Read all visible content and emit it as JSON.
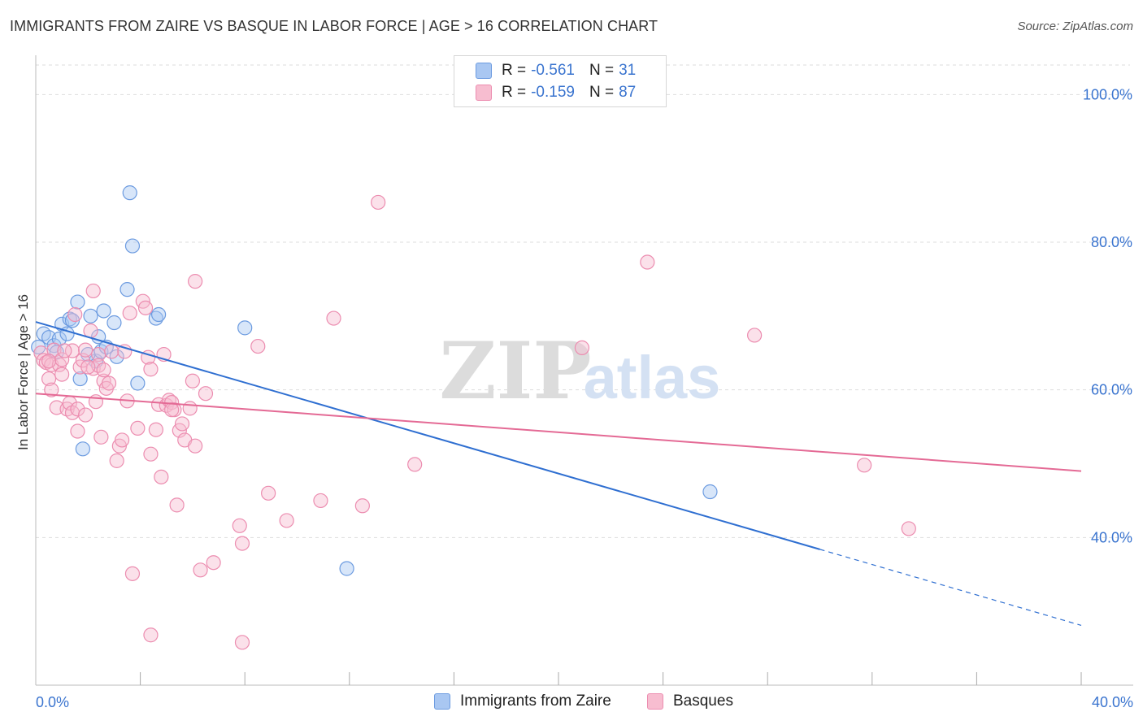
{
  "title": "IMMIGRANTS FROM ZAIRE VS BASQUE IN LABOR FORCE | AGE > 16 CORRELATION CHART",
  "source": "Source: ZipAtlas.com",
  "watermark": {
    "zip": "ZIP",
    "atlas": "atlas"
  },
  "colors": {
    "blue_fill": "#a9c7f2",
    "blue_stroke": "#6c9be0",
    "blue_line": "#2f6fd1",
    "pink_fill": "#f7bdd0",
    "pink_stroke": "#ec8db0",
    "pink_line": "#e46a95",
    "axis_label": "#3a74cf",
    "grid": "#dddddd"
  },
  "legend": {
    "series": [
      {
        "r_label": "R =",
        "r_value": "-0.561",
        "n_label": "N =",
        "n_value": "31"
      },
      {
        "r_label": "R =",
        "r_value": "-0.159",
        "n_label": "N =",
        "n_value": "87"
      }
    ]
  },
  "bottom_legend": [
    "Immigrants from Zaire",
    "Basques"
  ],
  "chart_data": {
    "type": "scatter",
    "xlabel": "",
    "ylabel": "In Labor Force | Age > 16",
    "xlim": [
      0,
      40
    ],
    "ylim": [
      20,
      104
    ],
    "x_tick_labels": [
      {
        "value": 0,
        "label": "0.0%"
      },
      {
        "value": 40,
        "label": "40.0%"
      }
    ],
    "x_minor_ticks": [
      4,
      8,
      12,
      16,
      20,
      24,
      28,
      32,
      36,
      40
    ],
    "y_ticks": [
      {
        "value": 100,
        "label": "100.0%"
      },
      {
        "value": 80,
        "label": "80.0%"
      },
      {
        "value": 60,
        "label": "60.0%"
      },
      {
        "value": 40,
        "label": "40.0%"
      }
    ],
    "grid": true,
    "legend_position": "top-center",
    "series": [
      {
        "name": "Immigrants from Zaire",
        "color": "blue",
        "trend": {
          "x1": 0,
          "y1": 69.2,
          "x2": 30,
          "y2": 38.4,
          "dashed_to_x": 40,
          "dashed_to_y": 28.1
        },
        "points": [
          [
            0.1,
            65.8
          ],
          [
            0.3,
            67.6
          ],
          [
            0.5,
            67.1
          ],
          [
            0.7,
            66.0
          ],
          [
            0.8,
            65.1
          ],
          [
            0.9,
            66.9
          ],
          [
            1.0,
            68.9
          ],
          [
            1.2,
            67.6
          ],
          [
            1.3,
            69.6
          ],
          [
            1.4,
            69.4
          ],
          [
            1.6,
            71.9
          ],
          [
            1.7,
            61.5
          ],
          [
            1.8,
            52.0
          ],
          [
            2.1,
            70.0
          ],
          [
            2.3,
            63.9
          ],
          [
            2.4,
            67.2
          ],
          [
            2.5,
            65.2
          ],
          [
            2.6,
            70.7
          ],
          [
            2.7,
            65.8
          ],
          [
            3.0,
            69.1
          ],
          [
            3.1,
            64.5
          ],
          [
            3.5,
            73.6
          ],
          [
            3.6,
            86.7
          ],
          [
            3.7,
            79.5
          ],
          [
            3.9,
            60.9
          ],
          [
            4.6,
            69.7
          ],
          [
            4.7,
            70.2
          ],
          [
            8.0,
            68.4
          ],
          [
            11.9,
            35.8
          ],
          [
            25.8,
            46.2
          ],
          [
            2.0,
            64.8
          ]
        ]
      },
      {
        "name": "Basques",
        "color": "pink",
        "trend": {
          "x1": 0,
          "y1": 59.5,
          "x2": 40,
          "y2": 49.0
        },
        "points": [
          [
            0.2,
            65.0
          ],
          [
            0.3,
            64.0
          ],
          [
            0.4,
            63.7
          ],
          [
            0.5,
            61.5
          ],
          [
            0.6,
            63.4
          ],
          [
            0.6,
            60.0
          ],
          [
            0.7,
            65.4
          ],
          [
            0.8,
            57.6
          ],
          [
            0.9,
            63.4
          ],
          [
            1.0,
            62.1
          ],
          [
            1.0,
            64.1
          ],
          [
            1.2,
            57.4
          ],
          [
            1.3,
            58.2
          ],
          [
            1.4,
            65.3
          ],
          [
            1.4,
            56.9
          ],
          [
            1.5,
            70.2
          ],
          [
            1.6,
            57.4
          ],
          [
            1.6,
            54.4
          ],
          [
            1.7,
            63.1
          ],
          [
            1.8,
            64.0
          ],
          [
            1.9,
            65.4
          ],
          [
            1.9,
            56.6
          ],
          [
            2.1,
            68.0
          ],
          [
            2.2,
            73.4
          ],
          [
            2.2,
            62.9
          ],
          [
            2.3,
            58.4
          ],
          [
            2.4,
            64.8
          ],
          [
            2.4,
            63.3
          ],
          [
            2.5,
            53.6
          ],
          [
            2.6,
            61.2
          ],
          [
            2.6,
            62.7
          ],
          [
            2.7,
            60.2
          ],
          [
            2.8,
            60.9
          ],
          [
            2.9,
            65.2
          ],
          [
            3.1,
            50.4
          ],
          [
            3.2,
            52.4
          ],
          [
            3.3,
            53.2
          ],
          [
            3.4,
            65.2
          ],
          [
            3.5,
            58.5
          ],
          [
            3.6,
            70.4
          ],
          [
            3.7,
            35.1
          ],
          [
            3.9,
            54.8
          ],
          [
            4.1,
            72.0
          ],
          [
            4.2,
            71.1
          ],
          [
            4.3,
            64.4
          ],
          [
            4.4,
            26.8
          ],
          [
            4.4,
            51.3
          ],
          [
            4.6,
            54.6
          ],
          [
            4.7,
            58.0
          ],
          [
            4.8,
            48.2
          ],
          [
            4.9,
            64.8
          ],
          [
            5.0,
            57.9
          ],
          [
            5.1,
            58.6
          ],
          [
            5.2,
            58.3
          ],
          [
            5.3,
            57.3
          ],
          [
            5.4,
            44.4
          ],
          [
            5.5,
            54.5
          ],
          [
            5.6,
            55.4
          ],
          [
            5.7,
            53.2
          ],
          [
            5.9,
            57.5
          ],
          [
            6.0,
            61.2
          ],
          [
            6.1,
            74.7
          ],
          [
            6.1,
            52.4
          ],
          [
            6.3,
            35.6
          ],
          [
            6.5,
            59.5
          ],
          [
            6.8,
            36.6
          ],
          [
            7.8,
            41.6
          ],
          [
            7.9,
            39.2
          ],
          [
            7.9,
            25.8
          ],
          [
            8.5,
            65.9
          ],
          [
            8.9,
            46.0
          ],
          [
            9.6,
            42.3
          ],
          [
            10.9,
            45.0
          ],
          [
            11.4,
            69.7
          ],
          [
            12.5,
            44.3
          ],
          [
            13.1,
            85.4
          ],
          [
            14.5,
            49.9
          ],
          [
            20.9,
            65.7
          ],
          [
            23.4,
            77.3
          ],
          [
            27.5,
            67.4
          ],
          [
            31.7,
            49.8
          ],
          [
            33.4,
            41.2
          ],
          [
            0.5,
            63.9
          ],
          [
            1.1,
            65.3
          ],
          [
            2.0,
            63.1
          ],
          [
            4.4,
            62.8
          ],
          [
            5.2,
            57.3
          ]
        ]
      }
    ]
  }
}
